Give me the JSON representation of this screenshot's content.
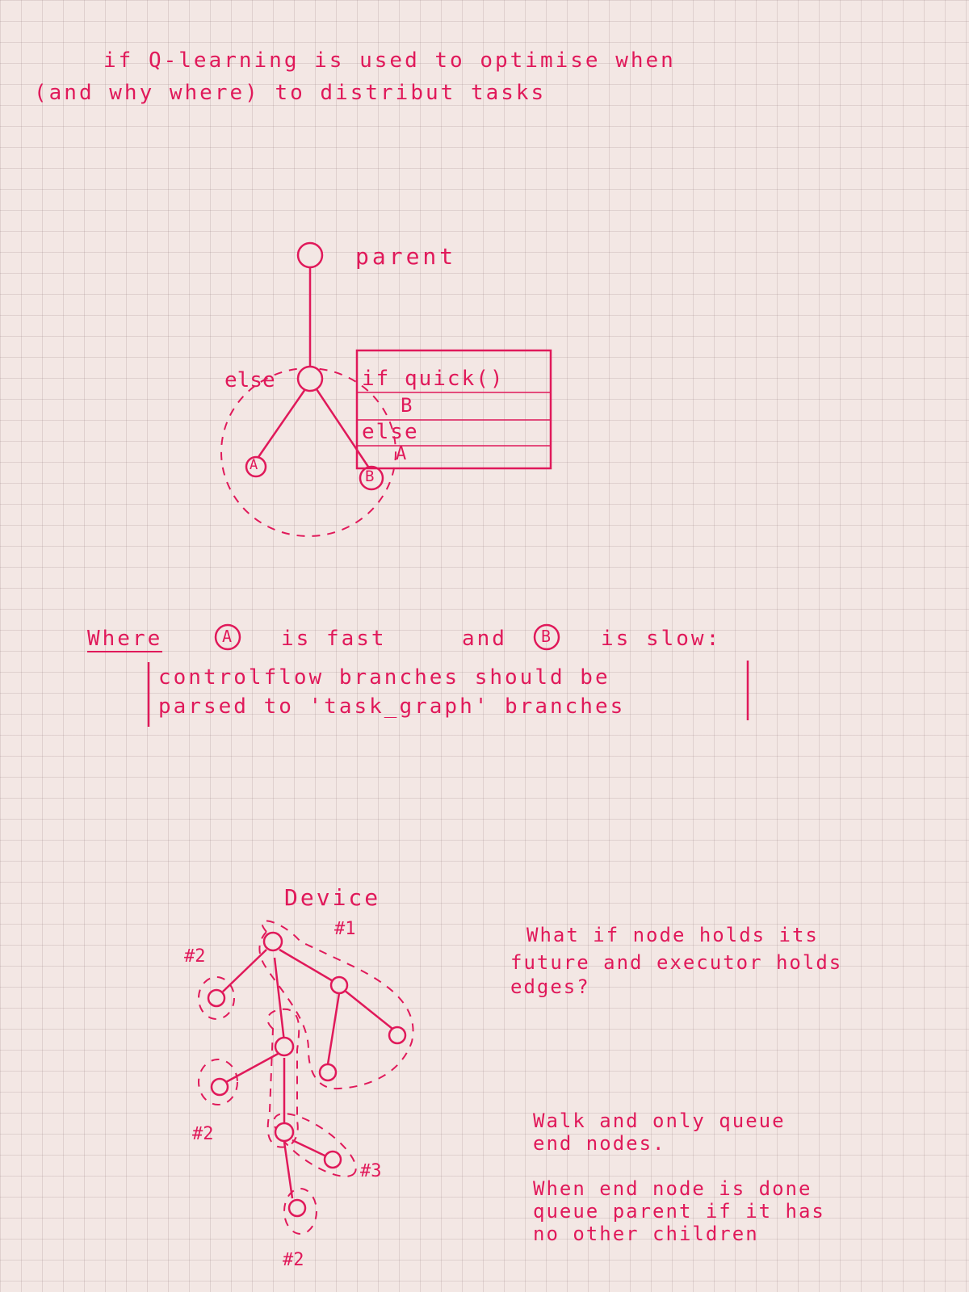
{
  "header": {
    "line1": "if   Q-learning  is used   to   optimise   when",
    "line2": "(and why  where)   to   distribut  tasks"
  },
  "diagram1": {
    "parent_label": "parent",
    "else_label": "else",
    "node_a": "A",
    "node_b": "B",
    "code_lines": [
      "if  quick()",
      "B",
      "else",
      "A"
    ]
  },
  "rule": {
    "prefix": "Where",
    "a": "A",
    "mid1": "is  fast",
    "and": "and",
    "b": "B",
    "mid2": "is  slow:",
    "line2": "controlflow  branches  should be",
    "line3": "parsed  to  'task_graph'   branches"
  },
  "diagram2": {
    "device_label": "Device",
    "tags": [
      "#1",
      "#2",
      "#2",
      "#3",
      "#2"
    ]
  },
  "notes": {
    "q1": "What if  node  holds  its",
    "q2": "future   and  executor  holds",
    "q3": "edges?",
    "w1": "Walk  and  only  queue",
    "w2": "end  nodes.",
    "e1": "When  end  node  is  done",
    "e2": "queue  parent  if  it  has",
    "e3": "no  other  children"
  },
  "colors": {
    "ink": "#e0195a",
    "paper": "#f3e7e4"
  }
}
